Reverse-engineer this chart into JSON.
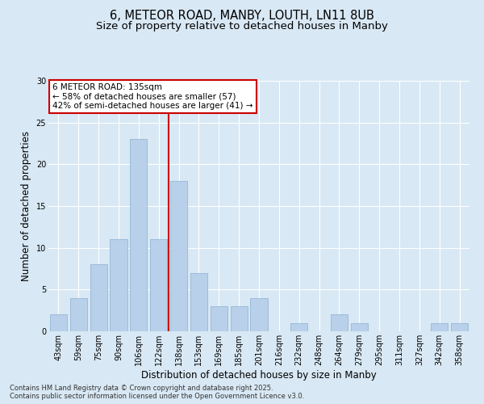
{
  "title1": "6, METEOR ROAD, MANBY, LOUTH, LN11 8UB",
  "title2": "Size of property relative to detached houses in Manby",
  "xlabel": "Distribution of detached houses by size in Manby",
  "ylabel": "Number of detached properties",
  "categories": [
    "43sqm",
    "59sqm",
    "75sqm",
    "90sqm",
    "106sqm",
    "122sqm",
    "138sqm",
    "153sqm",
    "169sqm",
    "185sqm",
    "201sqm",
    "216sqm",
    "232sqm",
    "248sqm",
    "264sqm",
    "279sqm",
    "295sqm",
    "311sqm",
    "327sqm",
    "342sqm",
    "358sqm"
  ],
  "values": [
    2,
    4,
    8,
    11,
    23,
    11,
    18,
    7,
    3,
    3,
    4,
    0,
    1,
    0,
    2,
    1,
    0,
    0,
    0,
    1,
    1
  ],
  "bar_color": "#b8d0ea",
  "bar_edgecolor": "#8ab0d0",
  "vline_color": "#cc0000",
  "annotation_text": "6 METEOR ROAD: 135sqm\n← 58% of detached houses are smaller (57)\n42% of semi-detached houses are larger (41) →",
  "annotation_box_edgecolor": "#cc0000",
  "background_color": "#d8e8f4",
  "plot_bg_color": "#d8e8f4",
  "ylim": [
    0,
    30
  ],
  "yticks": [
    0,
    5,
    10,
    15,
    20,
    25,
    30
  ],
  "footer1": "Contains HM Land Registry data © Crown copyright and database right 2025.",
  "footer2": "Contains public sector information licensed under the Open Government Licence v3.0.",
  "title_fontsize": 10.5,
  "subtitle_fontsize": 9.5,
  "tick_fontsize": 7,
  "ylabel_fontsize": 8.5,
  "xlabel_fontsize": 8.5,
  "footer_fontsize": 6,
  "annot_fontsize": 7.5,
  "vline_x_index": 6
}
